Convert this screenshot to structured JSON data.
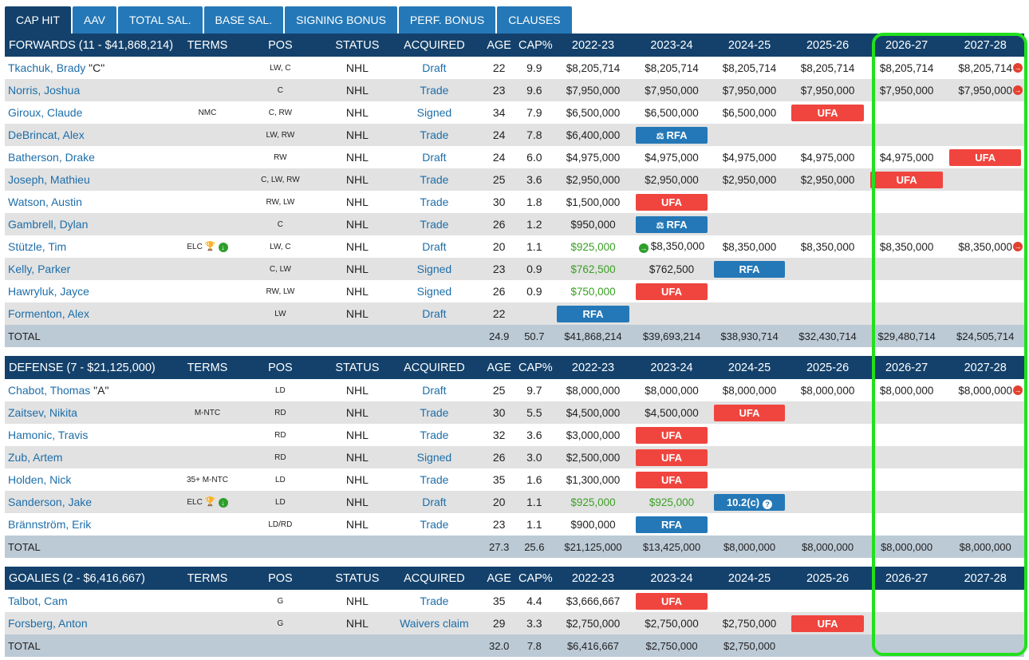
{
  "tabs": [
    "CAP HIT",
    "AAV",
    "TOTAL SAL.",
    "BASE SAL.",
    "SIGNING BONUS",
    "PERF. BONUS",
    "CLAUSES"
  ],
  "columns": [
    "TERMS",
    "POS",
    "STATUS",
    "ACQUIRED",
    "AGE",
    "CAP%",
    "2022-23",
    "2023-24",
    "2024-25",
    "2025-26",
    "2026-27",
    "2027-28"
  ],
  "icons": {
    "arrow_right_red": "→",
    "arrow_right_green": "→",
    "arrow_down_green": "↓",
    "trophy": "🏆",
    "question": "?",
    "gavel": "⚖"
  },
  "colors": {
    "header": "#13416b",
    "tab": "#2478b7",
    "ufa": "#f0453e",
    "rfa": "#2478b7",
    "green_text": "#3aa024",
    "highlight": "#22e01e"
  },
  "forwards": {
    "header": "FORWARDS (11 - $41,868,214)",
    "rows": [
      {
        "name": "Tkachuk, Brady",
        "tag": " \"C\"",
        "terms": "",
        "pos": "LW, C",
        "status": "NHL",
        "acq": "Draft",
        "age": "22",
        "capp": "9.9",
        "y": [
          "$8,205,714",
          "$8,205,714",
          "$8,205,714",
          "$8,205,714",
          "$8,205,714",
          "$8,205,714"
        ],
        "end_marker": true
      },
      {
        "name": "Norris, Joshua",
        "tag": "",
        "terms": "",
        "pos": "C",
        "status": "NHL",
        "acq": "Trade",
        "age": "23",
        "capp": "9.6",
        "y": [
          "$7,950,000",
          "$7,950,000",
          "$7,950,000",
          "$7,950,000",
          "$7,950,000",
          "$7,950,000"
        ],
        "end_marker": true
      },
      {
        "name": "Giroux, Claude",
        "tag": "",
        "terms": "NMC",
        "pos": "C, RW",
        "status": "NHL",
        "acq": "Signed",
        "age": "34",
        "capp": "7.9",
        "y": [
          "$6,500,000",
          "$6,500,000",
          "$6,500,000",
          "UFA",
          "",
          ""
        ]
      },
      {
        "name": "DeBrincat, Alex",
        "tag": "",
        "terms": "",
        "pos": "LW, RW",
        "status": "NHL",
        "acq": "Trade",
        "age": "24",
        "capp": "7.8",
        "y": [
          "$6,400,000",
          "RFA",
          "",
          "",
          "",
          ""
        ]
      },
      {
        "name": "Batherson, Drake",
        "tag": "",
        "terms": "",
        "pos": "RW",
        "status": "NHL",
        "acq": "Draft",
        "age": "24",
        "capp": "6.0",
        "y": [
          "$4,975,000",
          "$4,975,000",
          "$4,975,000",
          "$4,975,000",
          "$4,975,000",
          "UFA"
        ]
      },
      {
        "name": "Joseph, Mathieu",
        "tag": "",
        "terms": "",
        "pos": "C, LW, RW",
        "status": "NHL",
        "acq": "Trade",
        "age": "25",
        "capp": "3.6",
        "y": [
          "$2,950,000",
          "$2,950,000",
          "$2,950,000",
          "$2,950,000",
          "UFA",
          ""
        ]
      },
      {
        "name": "Watson, Austin",
        "tag": "",
        "terms": "",
        "pos": "RW, LW",
        "status": "NHL",
        "acq": "Trade",
        "age": "30",
        "capp": "1.8",
        "y": [
          "$1,500,000",
          "UFA",
          "",
          "",
          "",
          ""
        ]
      },
      {
        "name": "Gambrell, Dylan",
        "tag": "",
        "terms": "",
        "pos": "C",
        "status": "NHL",
        "acq": "Trade",
        "age": "26",
        "capp": "1.2",
        "y": [
          "$950,000",
          "RFA",
          "",
          "",
          "",
          ""
        ]
      },
      {
        "name": "Stützle, Tim",
        "tag": "",
        "terms": "ELC",
        "elc_icons": true,
        "pos": "LW, C",
        "status": "NHL",
        "acq": "Draft",
        "age": "20",
        "capp": "1.1",
        "y": [
          "$925,000",
          "$8,350,000",
          "$8,350,000",
          "$8,350,000",
          "$8,350,000",
          "$8,350,000"
        ],
        "green0": true,
        "pre_marker1": true,
        "end_marker": true
      },
      {
        "name": "Kelly, Parker",
        "tag": "",
        "terms": "",
        "pos": "C, LW",
        "status": "NHL",
        "acq": "Signed",
        "age": "23",
        "capp": "0.9",
        "y": [
          "$762,500",
          "$762,500",
          "RFA",
          "",
          "",
          ""
        ],
        "green0": true
      },
      {
        "name": "Hawryluk, Jayce",
        "tag": "",
        "terms": "",
        "pos": "RW, LW",
        "status": "NHL",
        "acq": "Signed",
        "age": "26",
        "capp": "0.9",
        "y": [
          "$750,000",
          "UFA",
          "",
          "",
          "",
          ""
        ],
        "green0": true
      },
      {
        "name": "Formenton, Alex",
        "tag": "",
        "terms": "",
        "pos": "LW",
        "status": "NHL",
        "acq": "Draft",
        "age": "22",
        "capp": "",
        "y": [
          "RFA",
          "",
          "",
          "",
          "",
          ""
        ]
      }
    ],
    "total": {
      "label": "TOTAL",
      "age": "24.9",
      "capp": "50.7",
      "y": [
        "$41,868,214",
        "$39,693,214",
        "$38,930,714",
        "$32,430,714",
        "$29,480,714",
        "$24,505,714"
      ]
    }
  },
  "defense": {
    "header": "DEFENSE (7 - $21,125,000)",
    "rows": [
      {
        "name": "Chabot, Thomas",
        "tag": " \"A\"",
        "terms": "",
        "pos": "LD",
        "status": "NHL",
        "acq": "Draft",
        "age": "25",
        "capp": "9.7",
        "y": [
          "$8,000,000",
          "$8,000,000",
          "$8,000,000",
          "$8,000,000",
          "$8,000,000",
          "$8,000,000"
        ],
        "end_marker": true
      },
      {
        "name": "Zaitsev, Nikita",
        "tag": "",
        "terms": "M-NTC",
        "pos": "RD",
        "status": "NHL",
        "acq": "Trade",
        "age": "30",
        "capp": "5.5",
        "y": [
          "$4,500,000",
          "$4,500,000",
          "UFA",
          "",
          "",
          ""
        ]
      },
      {
        "name": "Hamonic, Travis",
        "tag": "",
        "terms": "",
        "pos": "RD",
        "status": "NHL",
        "acq": "Trade",
        "age": "32",
        "capp": "3.6",
        "y": [
          "$3,000,000",
          "UFA",
          "",
          "",
          "",
          ""
        ]
      },
      {
        "name": "Zub, Artem",
        "tag": "",
        "terms": "",
        "pos": "RD",
        "status": "NHL",
        "acq": "Signed",
        "age": "26",
        "capp": "3.0",
        "y": [
          "$2,500,000",
          "UFA",
          "",
          "",
          "",
          ""
        ]
      },
      {
        "name": "Holden, Nick",
        "tag": "",
        "terms": "35+ M-NTC",
        "pos": "LD",
        "status": "NHL",
        "acq": "Trade",
        "age": "35",
        "capp": "1.6",
        "y": [
          "$1,300,000",
          "UFA",
          "",
          "",
          "",
          ""
        ]
      },
      {
        "name": "Sanderson, Jake",
        "tag": "",
        "terms": "ELC",
        "elc_icons": true,
        "pos": "LD",
        "status": "NHL",
        "acq": "Draft",
        "age": "20",
        "capp": "1.1",
        "y": [
          "$925,000",
          "$925,000",
          "10.2(c)",
          "",
          "",
          ""
        ],
        "green0": true,
        "green1": true
      },
      {
        "name": "Brännström, Erik",
        "tag": "",
        "terms": "",
        "pos": "LD/RD",
        "status": "NHL",
        "acq": "Trade",
        "age": "23",
        "capp": "1.1",
        "y": [
          "$900,000",
          "RFA",
          "",
          "",
          "",
          ""
        ]
      }
    ],
    "total": {
      "label": "TOTAL",
      "age": "27.3",
      "capp": "25.6",
      "y": [
        "$21,125,000",
        "$13,425,000",
        "$8,000,000",
        "$8,000,000",
        "$8,000,000",
        "$8,000,000"
      ]
    }
  },
  "goalies": {
    "header": "GOALIES (2 - $6,416,667)",
    "rows": [
      {
        "name": "Talbot, Cam",
        "tag": "",
        "terms": "",
        "pos": "G",
        "status": "NHL",
        "acq": "Trade",
        "age": "35",
        "capp": "4.4",
        "y": [
          "$3,666,667",
          "UFA",
          "",
          "",
          "",
          ""
        ]
      },
      {
        "name": "Forsberg, Anton",
        "tag": "",
        "terms": "",
        "pos": "G",
        "status": "NHL",
        "acq": "Waivers claim",
        "age": "29",
        "capp": "3.3",
        "y": [
          "$2,750,000",
          "$2,750,000",
          "$2,750,000",
          "UFA",
          "",
          ""
        ]
      }
    ],
    "total": {
      "label": "TOTAL",
      "age": "32.0",
      "capp": "7.8",
      "y": [
        "$6,416,667",
        "$2,750,000",
        "$2,750,000",
        "",
        "",
        ""
      ]
    }
  }
}
